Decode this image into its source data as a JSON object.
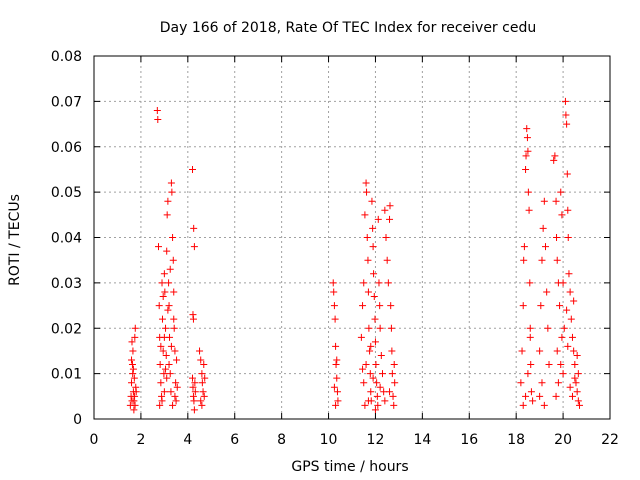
{
  "chart_data": {
    "type": "scatter",
    "title": "Day 166 of 2018, Rate Of TEC Index for receiver cedu",
    "xlabel": "GPS time / hours",
    "ylabel": "ROTI / TECUs",
    "xlim": [
      0,
      22
    ],
    "ylim": [
      0,
      0.08
    ],
    "x_ticks": [
      0,
      2,
      4,
      6,
      8,
      10,
      12,
      14,
      16,
      18,
      20,
      22
    ],
    "x_tick_labels": [
      "0",
      "2",
      "4",
      "6",
      "8",
      "10",
      "12",
      "14",
      "16",
      "18",
      "20",
      "22"
    ],
    "y_ticks": [
      0,
      0.01,
      0.02,
      0.03,
      0.04,
      0.05,
      0.06,
      0.07,
      0.08
    ],
    "y_tick_labels": [
      "0",
      "0.01",
      "0.02",
      "0.03",
      "0.04",
      "0.05",
      "0.06",
      "0.07",
      "0.08"
    ],
    "grid": true,
    "marker": "+",
    "series": [
      {
        "name": "ROTI",
        "color": "#ff0000",
        "points": [
          [
            1.55,
            0.003
          ],
          [
            1.58,
            0.005
          ],
          [
            1.6,
            0.008
          ],
          [
            1.62,
            0.004
          ],
          [
            1.64,
            0.012
          ],
          [
            1.66,
            0.015
          ],
          [
            1.68,
            0.006
          ],
          [
            1.7,
            0.002
          ],
          [
            1.72,
            0.009
          ],
          [
            1.74,
            0.018
          ],
          [
            1.76,
            0.02
          ],
          [
            1.78,
            0.007
          ],
          [
            1.6,
            0.013
          ],
          [
            1.65,
            0.01
          ],
          [
            1.7,
            0.004
          ],
          [
            1.75,
            0.003
          ],
          [
            1.8,
            0.006
          ],
          [
            1.62,
            0.017
          ],
          [
            1.68,
            0.011
          ],
          [
            1.73,
            0.005
          ],
          [
            2.7,
            0.068
          ],
          [
            2.72,
            0.066
          ],
          [
            2.75,
            0.038
          ],
          [
            2.78,
            0.025
          ],
          [
            2.8,
            0.018
          ],
          [
            2.82,
            0.012
          ],
          [
            2.85,
            0.008
          ],
          [
            2.88,
            0.005
          ],
          [
            2.9,
            0.03
          ],
          [
            2.92,
            0.022
          ],
          [
            2.95,
            0.015
          ],
          [
            2.98,
            0.01
          ],
          [
            3.0,
            0.032
          ],
          [
            3.02,
            0.028
          ],
          [
            3.05,
            0.02
          ],
          [
            3.08,
            0.014
          ],
          [
            3.1,
            0.037
          ],
          [
            3.12,
            0.045
          ],
          [
            3.15,
            0.048
          ],
          [
            3.18,
            0.03
          ],
          [
            3.2,
            0.025
          ],
          [
            3.22,
            0.018
          ],
          [
            3.25,
            0.01
          ],
          [
            3.28,
            0.006
          ],
          [
            3.3,
            0.052
          ],
          [
            3.32,
            0.05
          ],
          [
            3.35,
            0.04
          ],
          [
            3.38,
            0.035
          ],
          [
            3.4,
            0.028
          ],
          [
            3.42,
            0.02
          ],
          [
            3.45,
            0.015
          ],
          [
            3.48,
            0.008
          ],
          [
            3.5,
            0.004
          ],
          [
            3.52,
            0.013
          ],
          [
            3.55,
            0.007
          ],
          [
            2.8,
            0.003
          ],
          [
            2.9,
            0.004
          ],
          [
            3.0,
            0.006
          ],
          [
            3.1,
            0.009
          ],
          [
            3.2,
            0.012
          ],
          [
            3.3,
            0.016
          ],
          [
            3.4,
            0.022
          ],
          [
            3.0,
            0.018
          ],
          [
            3.15,
            0.024
          ],
          [
            3.25,
            0.033
          ],
          [
            2.95,
            0.027
          ],
          [
            3.05,
            0.011
          ],
          [
            3.35,
            0.003
          ],
          [
            3.45,
            0.005
          ],
          [
            2.85,
            0.016
          ],
          [
            4.2,
            0.055
          ],
          [
            4.25,
            0.042
          ],
          [
            4.28,
            0.038
          ],
          [
            4.22,
            0.023
          ],
          [
            4.24,
            0.022
          ],
          [
            4.2,
            0.009
          ],
          [
            4.22,
            0.007
          ],
          [
            4.24,
            0.005
          ],
          [
            4.26,
            0.004
          ],
          [
            4.28,
            0.002
          ],
          [
            4.3,
            0.008
          ],
          [
            4.32,
            0.006
          ],
          [
            4.5,
            0.015
          ],
          [
            4.55,
            0.013
          ],
          [
            4.6,
            0.01
          ],
          [
            4.62,
            0.008
          ],
          [
            4.65,
            0.006
          ],
          [
            4.68,
            0.012
          ],
          [
            4.7,
            0.005
          ],
          [
            4.72,
            0.009
          ],
          [
            4.55,
            0.004
          ],
          [
            4.6,
            0.003
          ],
          [
            10.2,
            0.03
          ],
          [
            10.22,
            0.028
          ],
          [
            10.25,
            0.025
          ],
          [
            10.28,
            0.022
          ],
          [
            10.3,
            0.016
          ],
          [
            10.32,
            0.012
          ],
          [
            10.35,
            0.009
          ],
          [
            10.38,
            0.006
          ],
          [
            10.4,
            0.004
          ],
          [
            10.3,
            0.003
          ],
          [
            10.25,
            0.007
          ],
          [
            10.35,
            0.013
          ],
          [
            11.4,
            0.018
          ],
          [
            11.45,
            0.025
          ],
          [
            11.5,
            0.03
          ],
          [
            11.55,
            0.045
          ],
          [
            11.6,
            0.052
          ],
          [
            11.62,
            0.05
          ],
          [
            11.65,
            0.04
          ],
          [
            11.68,
            0.035
          ],
          [
            11.7,
            0.028
          ],
          [
            11.72,
            0.02
          ],
          [
            11.75,
            0.015
          ],
          [
            11.78,
            0.01
          ],
          [
            11.8,
            0.006
          ],
          [
            11.82,
            0.004
          ],
          [
            11.85,
            0.048
          ],
          [
            11.88,
            0.042
          ],
          [
            11.9,
            0.038
          ],
          [
            11.92,
            0.032
          ],
          [
            11.95,
            0.027
          ],
          [
            11.98,
            0.022
          ],
          [
            12.0,
            0.017
          ],
          [
            12.02,
            0.012
          ],
          [
            12.05,
            0.008
          ],
          [
            12.08,
            0.005
          ],
          [
            12.1,
            0.003
          ],
          [
            12.12,
            0.044
          ],
          [
            12.15,
            0.03
          ],
          [
            12.18,
            0.025
          ],
          [
            12.2,
            0.02
          ],
          [
            12.25,
            0.014
          ],
          [
            12.3,
            0.01
          ],
          [
            12.35,
            0.006
          ],
          [
            12.4,
            0.046
          ],
          [
            12.45,
            0.04
          ],
          [
            12.5,
            0.035
          ],
          [
            12.55,
            0.03
          ],
          [
            12.6,
            0.044
          ],
          [
            12.62,
            0.047
          ],
          [
            12.65,
            0.025
          ],
          [
            12.68,
            0.02
          ],
          [
            12.7,
            0.015
          ],
          [
            12.72,
            0.01
          ],
          [
            12.75,
            0.005
          ],
          [
            12.78,
            0.003
          ],
          [
            12.8,
            0.012
          ],
          [
            12.82,
            0.008
          ],
          [
            11.5,
            0.008
          ],
          [
            11.6,
            0.012
          ],
          [
            11.7,
            0.004
          ],
          [
            11.8,
            0.016
          ],
          [
            11.9,
            0.009
          ],
          [
            12.0,
            0.002
          ],
          [
            12.2,
            0.007
          ],
          [
            12.4,
            0.004
          ],
          [
            12.6,
            0.006
          ],
          [
            11.45,
            0.011
          ],
          [
            11.55,
            0.003
          ],
          [
            18.2,
            0.008
          ],
          [
            18.25,
            0.015
          ],
          [
            18.3,
            0.025
          ],
          [
            18.32,
            0.035
          ],
          [
            18.35,
            0.038
          ],
          [
            18.4,
            0.055
          ],
          [
            18.42,
            0.058
          ],
          [
            18.45,
            0.064
          ],
          [
            18.48,
            0.062
          ],
          [
            18.5,
            0.059
          ],
          [
            18.52,
            0.05
          ],
          [
            18.55,
            0.046
          ],
          [
            18.58,
            0.03
          ],
          [
            18.6,
            0.02
          ],
          [
            18.62,
            0.012
          ],
          [
            18.65,
            0.006
          ],
          [
            18.7,
            0.004
          ],
          [
            18.3,
            0.003
          ],
          [
            18.4,
            0.005
          ],
          [
            18.5,
            0.01
          ],
          [
            18.6,
            0.018
          ],
          [
            19.0,
            0.015
          ],
          [
            19.05,
            0.025
          ],
          [
            19.1,
            0.035
          ],
          [
            19.15,
            0.042
          ],
          [
            19.2,
            0.048
          ],
          [
            19.25,
            0.038
          ],
          [
            19.3,
            0.028
          ],
          [
            19.35,
            0.02
          ],
          [
            19.4,
            0.012
          ],
          [
            19.0,
            0.005
          ],
          [
            19.1,
            0.008
          ],
          [
            19.2,
            0.003
          ],
          [
            19.6,
            0.057
          ],
          [
            19.65,
            0.058
          ],
          [
            19.7,
            0.048
          ],
          [
            19.72,
            0.04
          ],
          [
            19.75,
            0.035
          ],
          [
            19.8,
            0.03
          ],
          [
            19.85,
            0.025
          ],
          [
            19.9,
            0.05
          ],
          [
            19.95,
            0.045
          ],
          [
            20.0,
            0.03
          ],
          [
            20.05,
            0.02
          ],
          [
            20.1,
            0.07
          ],
          [
            20.12,
            0.067
          ],
          [
            20.15,
            0.065
          ],
          [
            20.18,
            0.054
          ],
          [
            20.2,
            0.046
          ],
          [
            20.22,
            0.04
          ],
          [
            20.25,
            0.032
          ],
          [
            20.3,
            0.028
          ],
          [
            20.35,
            0.022
          ],
          [
            20.4,
            0.018
          ],
          [
            20.45,
            0.015
          ],
          [
            20.5,
            0.012
          ],
          [
            20.55,
            0.008
          ],
          [
            20.6,
            0.006
          ],
          [
            20.65,
            0.004
          ],
          [
            20.7,
            0.003
          ],
          [
            19.7,
            0.005
          ],
          [
            19.8,
            0.008
          ],
          [
            19.9,
            0.012
          ],
          [
            20.0,
            0.01
          ],
          [
            20.2,
            0.016
          ],
          [
            20.3,
            0.007
          ],
          [
            20.4,
            0.005
          ],
          [
            20.5,
            0.009
          ],
          [
            19.75,
            0.015
          ],
          [
            19.95,
            0.018
          ],
          [
            20.15,
            0.024
          ],
          [
            20.45,
            0.026
          ],
          [
            20.6,
            0.014
          ],
          [
            20.65,
            0.01
          ]
        ]
      }
    ]
  }
}
